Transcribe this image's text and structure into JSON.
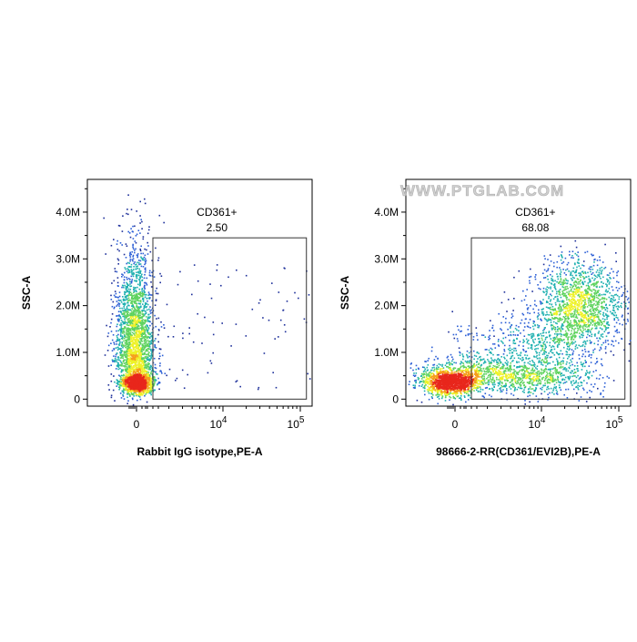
{
  "watermark": "WWW.PTGLAB.COM",
  "chart_data": [
    {
      "type": "scatter",
      "subtype": "flow-cytometry-density",
      "xlabel": "Rabbit IgG isotype,PE-A",
      "ylabel": "SSC-A",
      "x_scale": "biexponential",
      "x_ticks": [
        {
          "value": 0,
          "label": "0"
        },
        {
          "value": 10000,
          "label": "10",
          "sup": "4"
        },
        {
          "value": 100000,
          "label": "10",
          "sup": "5"
        }
      ],
      "y_ticks": [
        {
          "value": 0,
          "label": "0"
        },
        {
          "value": 1000000,
          "label": "1.0M"
        },
        {
          "value": 2000000,
          "label": "2.0M"
        },
        {
          "value": 3000000,
          "label": "3.0M"
        },
        {
          "value": 4000000,
          "label": "4.0M"
        }
      ],
      "ylim": [
        -150000,
        4700000
      ],
      "gate": {
        "name": "CD361+",
        "value": "2.50",
        "x_range": [
          600,
          120000
        ],
        "y_range": [
          0,
          3450000
        ]
      },
      "populations": [
        {
          "label": "negative cluster",
          "x_center": 0,
          "y_center": 400000,
          "density": "high"
        }
      ],
      "grid": false
    },
    {
      "type": "scatter",
      "subtype": "flow-cytometry-density",
      "xlabel": "98666-2-RR(CD361/EVI2B),PE-A",
      "ylabel": "SSC-A",
      "x_scale": "biexponential",
      "x_ticks": [
        {
          "value": 0,
          "label": "0"
        },
        {
          "value": 10000,
          "label": "10",
          "sup": "4"
        },
        {
          "value": 100000,
          "label": "10",
          "sup": "5"
        }
      ],
      "y_ticks": [
        {
          "value": 0,
          "label": "0"
        },
        {
          "value": 1000000,
          "label": "1.0M"
        },
        {
          "value": 2000000,
          "label": "2.0M"
        },
        {
          "value": 3000000,
          "label": "3.0M"
        },
        {
          "value": 4000000,
          "label": "4.0M"
        }
      ],
      "ylim": [
        -150000,
        4700000
      ],
      "gate": {
        "name": "CD361+",
        "value": "68.08",
        "x_range": [
          600,
          120000
        ],
        "y_range": [
          0,
          3450000
        ]
      },
      "populations": [
        {
          "label": "negative cluster",
          "x_center": 0,
          "y_center": 400000,
          "density": "high"
        },
        {
          "label": "positive cluster",
          "x_center": 30000,
          "y_center": 2000000,
          "density": "medium"
        }
      ],
      "grid": false
    }
  ]
}
